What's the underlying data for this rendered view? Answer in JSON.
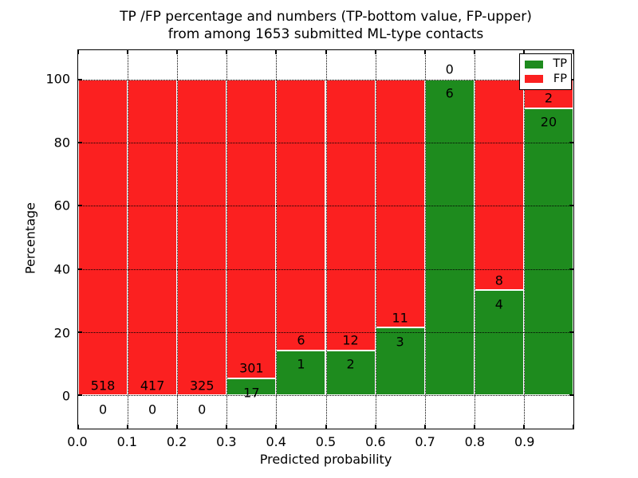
{
  "chart_data": {
    "type": "bar",
    "stacked": true,
    "title_line1": "TP /FP percentage and numbers (TP-bottom value, FP-upper)",
    "title_line2": "from among 1653 submitted ML-type contacts",
    "xlabel": "Predicted probability",
    "ylabel": "Percentage",
    "xlim": [
      0.0,
      1.0
    ],
    "ylim": [
      -10.5,
      109.3
    ],
    "bin_width": 0.1,
    "grid": true,
    "xticks": [
      0.0,
      0.1,
      0.2,
      0.3,
      0.4,
      0.5,
      0.6,
      0.7,
      0.8,
      0.9
    ],
    "yticks": [
      0,
      20,
      40,
      60,
      80,
      100
    ],
    "bins": [
      {
        "x_start": 0.0,
        "tp": 0,
        "fp": 518,
        "tp_percent": 0
      },
      {
        "x_start": 0.1,
        "tp": 0,
        "fp": 417,
        "tp_percent": 0
      },
      {
        "x_start": 0.2,
        "tp": 0,
        "fp": 325,
        "tp_percent": 0
      },
      {
        "x_start": 0.3,
        "tp": 17,
        "fp": 301,
        "tp_percent": 5.3
      },
      {
        "x_start": 0.4,
        "tp": 1,
        "fp": 6,
        "tp_percent": 14.3
      },
      {
        "x_start": 0.5,
        "tp": 2,
        "fp": 12,
        "tp_percent": 14.3
      },
      {
        "x_start": 0.6,
        "tp": 3,
        "fp": 11,
        "tp_percent": 21.4
      },
      {
        "x_start": 0.7,
        "tp": 6,
        "fp": 0,
        "tp_percent": 100
      },
      {
        "x_start": 0.8,
        "tp": 4,
        "fp": 8,
        "tp_percent": 33.3
      },
      {
        "x_start": 0.9,
        "tp": 20,
        "fp": 2,
        "tp_percent": 90.9
      }
    ],
    "legend": {
      "position": "upper right",
      "entries": [
        {
          "label": "TP",
          "color": "#1e8b1e"
        },
        {
          "label": "FP",
          "color": "#fb2020"
        }
      ]
    },
    "colors": {
      "tp": "#1e8b1e",
      "fp": "#fb2020",
      "grid": "#000000",
      "background": "#ffffff"
    }
  }
}
